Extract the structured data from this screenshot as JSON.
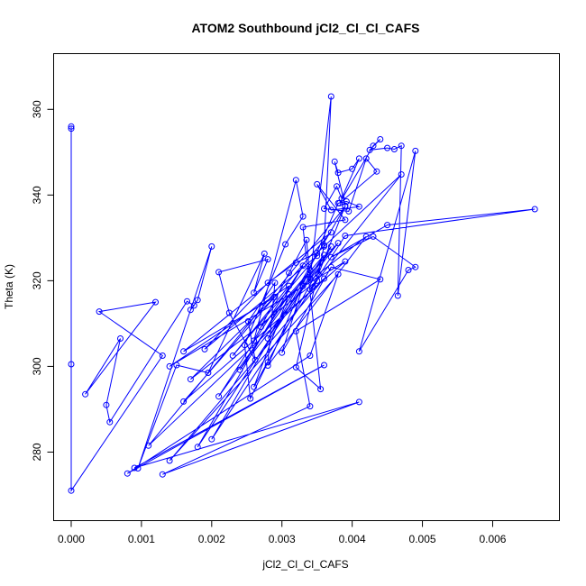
{
  "chart_data": {
    "type": "line",
    "title": "ATOM2 Southbound jCl2_Cl_Cl_CAFS",
    "xlabel": "jCl2_Cl_Cl_CAFS",
    "ylabel": "Theta (K)",
    "xlim": [
      -0.00025,
      0.00695
    ],
    "ylim": [
      264,
      373
    ],
    "xticks": [
      0.0,
      0.001,
      0.002,
      0.003,
      0.004,
      0.005,
      0.006
    ],
    "xtick_labels": [
      "0.000",
      "0.001",
      "0.002",
      "0.003",
      "0.004",
      "0.005",
      "0.006"
    ],
    "yticks": [
      280,
      300,
      320,
      340,
      360
    ],
    "yticks_labels": [
      "280",
      "300",
      "320",
      "340",
      "360"
    ],
    "grid": false,
    "color": "#0000ff",
    "marker": "open-circle",
    "series": [
      {
        "x": [
          0.0,
          0.0,
          0.0,
          0.0,
          0.0013,
          0.0004,
          0.0012,
          0.0002,
          0.0007,
          0.0005,
          0.00055,
          0.00165,
          0.00175,
          0.0017,
          0.0018,
          0.002,
          0.00095,
          0.0015,
          0.00195,
          0.00275,
          0.0026,
          0.0028,
          0.0021,
          0.00225,
          0.00262,
          0.00252,
          0.0029,
          0.0028,
          0.00255,
          0.00247,
          0.00305,
          0.0033,
          0.0032,
          0.0026,
          0.0031,
          0.00335,
          0.0034,
          0.0037,
          0.0036,
          0.00352,
          0.0039,
          0.00375,
          0.0038,
          0.004,
          0.0041,
          0.00385,
          0.00378,
          0.0036,
          0.00395,
          0.0042,
          0.00435,
          0.00382,
          0.0043,
          0.0044,
          0.00425,
          0.0045,
          0.0046,
          0.0047,
          0.00465,
          0.0049,
          0.0041,
          0.0048,
          0.0049,
          0.0043,
          0.0037,
          0.0045,
          0.0066,
          0.0039,
          0.0034,
          0.0047,
          0.0035,
          0.0032,
          0.0028,
          0.0019,
          0.0035,
          0.0023,
          0.0031,
          0.0014,
          0.0039,
          0.0016,
          0.0037,
          0.0016,
          0.0029,
          0.0017,
          0.0035,
          0.002,
          0.0034,
          0.0021,
          0.0033,
          0.0018,
          0.0037,
          0.0026,
          0.0031,
          0.0024,
          0.0038,
          0.0027,
          0.0036,
          0.0028,
          0.0039,
          0.0011,
          0.0036,
          0.0014,
          0.0038,
          0.0034,
          0.0008,
          0.0036,
          0.0009,
          0.0041,
          0.0013,
          0.0034,
          0.0032,
          0.0044,
          0.0037,
          0.003,
          0.0033,
          0.0042,
          0.0028,
          0.0038,
          0.00392,
          0.0041,
          0.0037,
          0.0035,
          0.0039,
          0.0033,
          0.00355,
          0.0032,
          0.0036
        ],
        "y": [
          356,
          355.5,
          300.5,
          271,
          302.5,
          312.8,
          315,
          293.5,
          306.5,
          291,
          287,
          315.2,
          314.2,
          313.2,
          315.5,
          328,
          276.2,
          300.3,
          298.5,
          326.3,
          317.2,
          325,
          322,
          312.5,
          301.5,
          310.5,
          319.5,
          301,
          292.5,
          305,
          328.5,
          335,
          343.5,
          306,
          321.8,
          329.5,
          320.5,
          363,
          328.3,
          321.5,
          337.5,
          347.8,
          345.2,
          346.1,
          348.5,
          339.2,
          342,
          336.8,
          336.2,
          348.5,
          345.5,
          338.1,
          351.5,
          353,
          350.5,
          351,
          350.7,
          351.5,
          316.5,
          350.3,
          303.5,
          322.5,
          323.2,
          330.3,
          325.5,
          333,
          336.7,
          330.5,
          318,
          344.8,
          326.5,
          324.2,
          319.5,
          304,
          325.8,
          302.5,
          318.8,
          300,
          324.5,
          291.8,
          331.3,
          303.5,
          316.2,
          297,
          320,
          283,
          322.5,
          293,
          323.5,
          281.2,
          328,
          295.2,
          316.8,
          299.2,
          328.8,
          309.2,
          326,
          306.5,
          337.3,
          281.5,
          320.5,
          278,
          321.5,
          302.5,
          275,
          300.3,
          276.3,
          291.7,
          274.8,
          290.7,
          308.2,
          320.3,
          323.2,
          303.2,
          318.8,
          330.3,
          300.2,
          338.1,
          338.5,
          337.3,
          336.5,
          342.5,
          334.2,
          332.5,
          294.7,
          299.8,
          328
        ]
      }
    ]
  }
}
